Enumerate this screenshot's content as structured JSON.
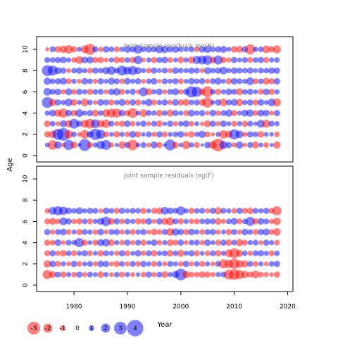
{
  "chart_data": [
    {
      "type": "scatter",
      "subtype": "bubble",
      "title": "Joint sample residuals log(N)",
      "ylabel": "Age",
      "xlim": [
        1973,
        2021
      ],
      "ylim": [
        -0.6,
        11.2
      ],
      "yticks": [
        0,
        2,
        4,
        6,
        8,
        10
      ],
      "x": [
        1975,
        1976,
        1977,
        1978,
        1979,
        1980,
        1981,
        1982,
        1983,
        1984,
        1985,
        1986,
        1987,
        1988,
        1989,
        1990,
        1991,
        1992,
        1993,
        1994,
        1995,
        1996,
        1997,
        1998,
        1999,
        2000,
        2001,
        2002,
        2003,
        2004,
        2005,
        2006,
        2007,
        2008,
        2009,
        2010,
        2011,
        2012,
        2013,
        2014,
        2015,
        2016,
        2017,
        2018
      ],
      "ages": [
        1,
        2,
        3,
        4,
        5,
        6,
        7,
        8,
        9,
        10
      ],
      "residuals": [
        [
          0.8,
          -2.1,
          1.5,
          -0.7,
          2.3,
          -1.4,
          0.5,
          2.8,
          -1.1,
          0.9,
          1.8,
          2.2,
          -0.9,
          0.6,
          -1.5,
          1.2,
          -2.4,
          0.8,
          1.1,
          -0.8,
          1.4,
          -1.2,
          0.5,
          2.5,
          -1.3,
          0.7,
          -1.8,
          0.9,
          -1.1,
          0.4,
          1.3,
          -1.6,
          -3.0,
          1.7,
          1.2,
          -0.9,
          1.5,
          -0.7,
          1.1,
          -1.4,
          0.8,
          -1.0,
          0.6,
          -1.5
        ],
        [
          -1.2,
          -1.6,
          2.5,
          3.0,
          -1.8,
          1.0,
          -0.7,
          -1.9,
          1.3,
          2.6,
          2.0,
          -1.1,
          0.8,
          -1.3,
          0.9,
          -1.0,
          1.4,
          -1.2,
          0.7,
          1.1,
          -0.9,
          1.2,
          -1.1,
          0.8,
          1.0,
          1.3,
          -0.8,
          -1.2,
          0.9,
          1.5,
          -1.1,
          -0.6,
          0.9,
          -1.8,
          -1.5,
          2.3,
          1.6,
          -0.9,
          1.2,
          1.0,
          -1.3,
          0.8,
          0.7,
          -1.0
        ],
        [
          -1.3,
          1.0,
          -0.8,
          1.4,
          -1.5,
          2.2,
          1.2,
          -1.6,
          -2.2,
          1.9,
          -1.5,
          -1.8,
          1.1,
          -0.9,
          -1.2,
          1.3,
          -1.0,
          0.8,
          1.2,
          -0.8,
          1.1,
          -1.3,
          0.7,
          1.2,
          -0.9,
          1.0,
          1.3,
          -1.0,
          0.8,
          -0.7,
          -1.4,
          1.2,
          -0.9,
          1.3,
          0.8,
          -1.1,
          0.9,
          -1.2,
          1.1,
          0.7,
          1.6,
          -1.7,
          1.1,
          0.9
        ],
        [
          0.9,
          1.4,
          -1.5,
          -2.0,
          1.3,
          -1.2,
          1.6,
          0.9,
          1.2,
          -1.4,
          1.0,
          -1.6,
          -1.9,
          -2.0,
          1.3,
          -1.2,
          -2.2,
          0.8,
          -1.6,
          1.1,
          0.9,
          -1.3,
          1.0,
          -1.4,
          1.2,
          0.8,
          -1.1,
          1.4,
          0.9,
          1.2,
          -0.7,
          1.3,
          -1.0,
          1.1,
          1.5,
          -1.2,
          0.8,
          1.4,
          1.5,
          -1.0,
          1.4,
          1.3,
          -0.8,
          1.2
        ],
        [
          2.5,
          -1.5,
          1.2,
          0.9,
          1.6,
          -1.3,
          0.8,
          -1.6,
          1.0,
          -0.8,
          1.3,
          1.1,
          -1.2,
          0.9,
          1.4,
          -1.0,
          1.2,
          -1.2,
          0.8,
          1.5,
          -1.1,
          0.9,
          1.2,
          -0.9,
          1.3,
          -1.2,
          -1.4,
          1.0,
          1.1,
          -1.3,
          -2.3,
          0.8,
          1.2,
          -1.6,
          1.1,
          1.4,
          -1.5,
          0.9,
          1.2,
          -1.1,
          1.3,
          0.8,
          1.6,
          -1.7
        ],
        [
          1.6,
          1.1,
          1.3,
          -0.9,
          1.4,
          -1.0,
          1.2,
          0.9,
          -1.2,
          1.0,
          1.1,
          -0.8,
          1.3,
          1.5,
          -1.1,
          0.8,
          1.2,
          -0.7,
          1.9,
          -1.4,
          0.9,
          1.3,
          -0.8,
          1.1,
          1.4,
          -0.9,
          1.2,
          2.6,
          2.3,
          -1.3,
          -2.5,
          1.0,
          -1.2,
          0.9,
          1.3,
          1.1,
          -1.4,
          1.0,
          1.2,
          0.8,
          -1.1,
          1.3,
          -1.2,
          0.9
        ],
        [
          1.5,
          1.0,
          1.2,
          1.4,
          -1.1,
          0.9,
          -0.8,
          1.3,
          1.0,
          -0.9,
          1.2,
          0.8,
          1.4,
          1.1,
          -1.0,
          1.3,
          0.9,
          1.2,
          -0.8,
          1.0,
          1.3,
          -0.7,
          1.1,
          0.9,
          1.2,
          -1.1,
          0.8,
          1.3,
          1.0,
          1.2,
          -0.9,
          1.1,
          1.4,
          0.8,
          -1.2,
          1.3,
          1.1,
          0.9,
          1.6,
          -1.1,
          1.0,
          -1.4,
          -1.2,
          1.3
        ],
        [
          2.5,
          2.2,
          1.4,
          1.2,
          -0.8,
          1.0,
          1.3,
          0.9,
          -1.1,
          1.2,
          1.0,
          1.5,
          1.8,
          1.1,
          2.2,
          1.7,
          2.0,
          1.4,
          0.9,
          -1.0,
          1.2,
          0.8,
          1.1,
          -0.9,
          1.3,
          1.0,
          0.9,
          1.2,
          1.1,
          -0.8,
          1.4,
          1.0,
          1.2,
          1.6,
          0.9,
          1.3,
          1.1,
          1.0,
          1.2,
          0.8,
          1.1,
          1.0,
          1.3,
          1.2
        ],
        [
          1.1,
          1.0,
          1.2,
          1.3,
          0.9,
          -1.0,
          -1.6,
          1.3,
          1.4,
          -1.2,
          -1.2,
          -0.8,
          0.9,
          -1.3,
          -1.1,
          1.0,
          -1.2,
          1.8,
          -0.7,
          0.9,
          -1.2,
          1.1,
          1.3,
          -1.0,
          0.8,
          -1.3,
          0.9,
          -1.4,
          1.7,
          1.9,
          2.1,
          -1.3,
          2.0,
          -1.2,
          -0.9,
          1.2,
          0.8,
          1.1,
          -1.1,
          1.0,
          1.2,
          -1.1,
          0.9,
          1.0
        ],
        [
          -0.6,
          1.1,
          -1.3,
          -1.5,
          -1.8,
          -1.2,
          0.8,
          -1.6,
          -2.5,
          1.1,
          -0.9,
          1.3,
          1.0,
          -1.1,
          0.9,
          1.4,
          1.2,
          1.8,
          1.0,
          1.3,
          1.1,
          1.6,
          1.5,
          1.2,
          1.4,
          1.0,
          0.9,
          1.1,
          -1.0,
          1.3,
          1.5,
          1.0,
          1.2,
          1.4,
          0.8,
          -1.3,
          -1.4,
          1.2,
          -2.3,
          0.9,
          1.0,
          -1.6,
          -1.2,
          -1.7
        ]
      ]
    },
    {
      "type": "scatter",
      "subtype": "bubble",
      "title": "Joint sample residuals log(F)",
      "xlabel": "Year",
      "xlim": [
        1973,
        2021
      ],
      "ylim": [
        -0.6,
        11.2
      ],
      "xticks": [
        1980,
        1990,
        2000,
        2010,
        2020
      ],
      "yticks": [
        0,
        2,
        4,
        6,
        8,
        10
      ],
      "x": [
        1975,
        1976,
        1977,
        1978,
        1979,
        1980,
        1981,
        1982,
        1983,
        1984,
        1985,
        1986,
        1987,
        1988,
        1989,
        1990,
        1991,
        1992,
        1993,
        1994,
        1995,
        1996,
        1997,
        1998,
        1999,
        2000,
        2001,
        2002,
        2003,
        2004,
        2005,
        2006,
        2007,
        2008,
        2009,
        2010,
        2011,
        2012,
        2013,
        2014,
        2015,
        2016,
        2017,
        2018
      ],
      "ages": [
        1,
        2,
        3,
        4,
        5,
        6,
        7
      ],
      "residuals": [
        [
          -2.0,
          -1.4,
          1.1,
          -1.2,
          0.9,
          -1.0,
          1.2,
          -0.9,
          1.1,
          0.8,
          -1.3,
          0.9,
          -0.8,
          1.0,
          -1.1,
          0.9,
          -0.8,
          0.7,
          -1.0,
          1.2,
          -0.9,
          1.1,
          -1.3,
          0.9,
          1.4,
          2.7,
          -1.5,
          -1.1,
          -1.0,
          -1.3,
          -1.2,
          -0.9,
          0.9,
          1.1,
          -2.2,
          -2.4,
          -2.0,
          -1.5,
          -1.2,
          -1.6,
          -1.0,
          -0.9,
          -0.7,
          -1.2
        ],
        [
          -1.5,
          1.3,
          -1.1,
          0.9,
          -0.8,
          1.2,
          -1.0,
          0.8,
          1.1,
          -0.9,
          1.3,
          1.2,
          -0.8,
          -1.2,
          1.0,
          -0.9,
          1.1,
          -1.0,
          1.2,
          0.9,
          -1.1,
          1.0,
          -0.8,
          1.1,
          0.9,
          -1.0,
          1.2,
          -0.9,
          1.0,
          -1.1,
          0.9,
          -0.8,
          1.1,
          -2.0,
          -1.8,
          -2.3,
          -1.6,
          -1.4,
          1.1,
          -1.0,
          0.9,
          -0.8,
          1.0,
          1.2
        ],
        [
          -1.1,
          1.2,
          -0.9,
          -1.3,
          1.0,
          -1.1,
          0.9,
          1.2,
          -1.0,
          0.8,
          -1.2,
          1.1,
          0.9,
          -0.9,
          1.2,
          -1.1,
          0.8,
          1.3,
          -0.9,
          1.1,
          -1.2,
          0.9,
          1.1,
          -1.3,
          1.0,
          -1.4,
          0.9,
          1.2,
          -1.1,
          0.8,
          -1.0,
          1.1,
          -1.2,
          0.9,
          -1.6,
          -2.3,
          -1.4,
          1.0,
          -0.9,
          1.1,
          1.2,
          0.9,
          -1.1,
          1.0
        ],
        [
          -1.2,
          -1.0,
          1.3,
          -0.8,
          1.1,
          0.9,
          2.0,
          -1.2,
          0.8,
          -1.1,
          1.4,
          1.6,
          -1.3,
          0.9,
          -1.0,
          1.2,
          -0.9,
          1.1,
          -1.2,
          0.8,
          1.3,
          -1.0,
          0.9,
          -1.3,
          -1.1,
          1.2,
          -0.8,
          1.0,
          1.1,
          -0.9,
          1.3,
          0.8,
          -1.1,
          1.2,
          -1.3,
          1.0,
          -1.5,
          -1.1,
          0.9,
          1.1,
          -0.8,
          1.2,
          0.9,
          -1.0
        ],
        [
          1.2,
          -0.9,
          1.1,
          1.3,
          -1.0,
          0.8,
          -1.2,
          1.1,
          0.9,
          -1.0,
          1.3,
          -0.8,
          1.1,
          1.2,
          -0.9,
          1.0,
          -1.1,
          0.9,
          1.2,
          -0.8,
          -1.3,
          -1.0,
          1.1,
          -1.6,
          1.5,
          1.2,
          -1.1,
          1.3,
          0.9,
          -1.0,
          1.1,
          1.2,
          -0.9,
          0.8,
          -1.2,
          1.1,
          -0.9,
          1.3,
          1.0,
          -1.1,
          1.2,
          1.4,
          -1.0,
          -1.6
        ],
        [
          -1.1,
          -1.4,
          -1.0,
          1.6,
          1.2,
          -0.9,
          -1.2,
          1.0,
          -1.1,
          0.9,
          1.4,
          2.1,
          -1.3,
          1.2,
          -1.0,
          1.1,
          0.9,
          -1.2,
          -1.1,
          1.3,
          -0.8,
          1.2,
          -1.4,
          -1.7,
          1.1,
          -1.2,
          0.9,
          -1.0,
          -1.1,
          1.0,
          1.2,
          1.1,
          -1.3,
          -0.9,
          1.0,
          1.4,
          -1.1,
          1.0,
          2.0,
          -1.2,
          1.3,
          1.1,
          -0.9,
          -1.6
        ],
        [
          -0.9,
          1.6,
          2.0,
          1.8,
          1.3,
          1.0,
          1.4,
          0.9,
          1.2,
          1.1,
          -0.8,
          1.3,
          1.0,
          -1.1,
          1.2,
          0.9,
          1.1,
          1.0,
          -1.2,
          0.8,
          -1.1,
          -1.4,
          1.6,
          1.3,
          1.1,
          1.9,
          0.9,
          -1.2,
          1.0,
          1.1,
          -0.9,
          1.2,
          -1.5,
          1.1,
          0.9,
          -1.0,
          1.2,
          -1.1,
          -1.3,
          1.1,
          0.9,
          1.2,
          -1.1,
          -2.0
        ]
      ]
    }
  ],
  "legend": {
    "labels": [
      "-3",
      "-2",
      "-1",
      "0",
      "1",
      "2",
      "3",
      "4"
    ],
    "values": [
      -3,
      -2,
      -1,
      0,
      1,
      2,
      3,
      4
    ]
  },
  "colors": {
    "negative": "#FF0000",
    "positive": "#0000FF",
    "panel_title": "#808080",
    "axis": "#000000"
  }
}
